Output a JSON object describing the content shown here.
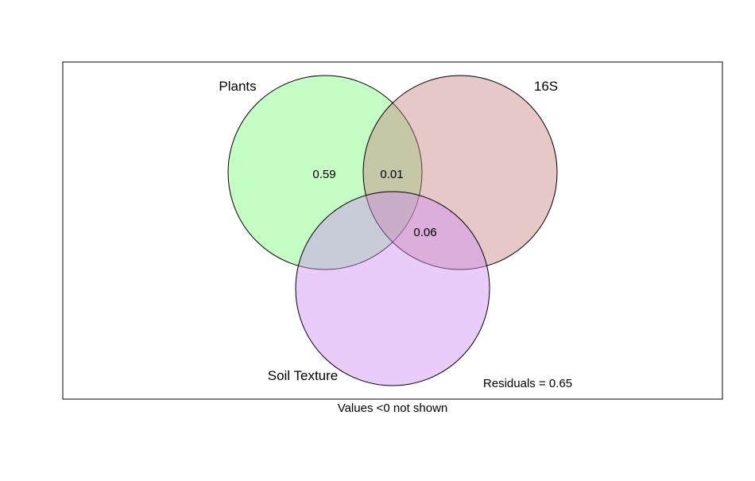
{
  "chart_data": {
    "type": "venn",
    "sets": [
      {
        "key": "plants",
        "name": "Plants",
        "color": "#7CFC7C"
      },
      {
        "key": "s16",
        "name": "16S",
        "color": "#C98686"
      },
      {
        "key": "soil",
        "name": "Soil Texture",
        "color": "#CF8FF2"
      }
    ],
    "regions": [
      {
        "key": "plants_only",
        "label": "0.59"
      },
      {
        "key": "plants_s16",
        "label": "0.01"
      },
      {
        "key": "s16_soil",
        "label": "0.06"
      }
    ],
    "residuals_text": "Residuals = 0.65",
    "note": "Values <0 not shown"
  }
}
